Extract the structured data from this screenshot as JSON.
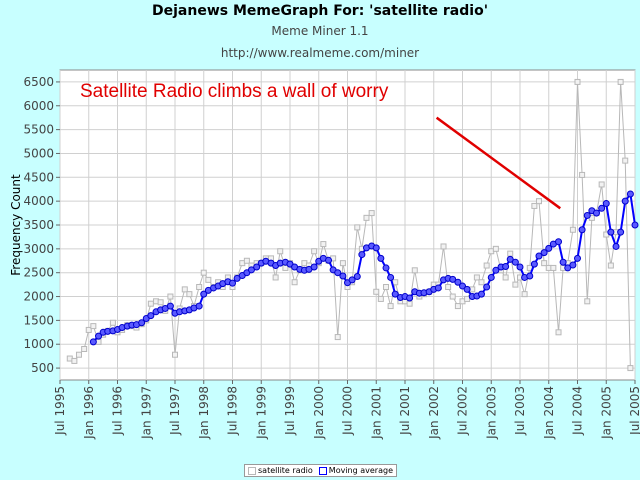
{
  "header": {
    "title": "Dejanews MemeGraph For: 'satellite radio'",
    "subtitle": "Meme Miner 1.1",
    "url": "http://www.realmeme.com/miner"
  },
  "colors": {
    "background": "#c8ffff",
    "raw_series": "#b8b8b8",
    "moving_average": "#0000ff",
    "annotation": "#e00000"
  },
  "chart_data": {
    "type": "line",
    "title": "Dejanews MemeGraph For: 'satellite radio'",
    "xlabel": "",
    "ylabel": "Frequency Count",
    "ylim": [
      250,
      6750
    ],
    "yticks": [
      500,
      1000,
      1500,
      2000,
      2500,
      3000,
      3500,
      4000,
      4500,
      5000,
      5500,
      6000,
      6500
    ],
    "xlim": [
      1995.5,
      2005.5
    ],
    "xticks": [
      "Jul 1995",
      "Jan 1996",
      "Jul 1996",
      "Jan 1997",
      "Jul 1997",
      "Jan 1998",
      "Jul 1998",
      "Jan 1999",
      "Jul 1999",
      "Jan 2000",
      "Jul 2000",
      "Jan 2001",
      "Jul 2001",
      "Jan 2002",
      "Jul 2002",
      "Jan 2003",
      "Jul 2003",
      "Jan 2004",
      "Jul 2004",
      "Jan 2005",
      "Jul 2005"
    ],
    "grid": true,
    "legend": "bottom-center",
    "annotation": {
      "text": "Satellite Radio climbs a wall of worry",
      "arrow_from": [
        2002.05,
        5750
      ],
      "arrow_to": [
        2004.2,
        3850
      ]
    },
    "series": [
      {
        "name": "satellite radio",
        "style": "thin gray line with square markers",
        "points": [
          [
            1995.67,
            700
          ],
          [
            1995.75,
            650
          ],
          [
            1995.83,
            780
          ],
          [
            1995.92,
            900
          ],
          [
            1996.0,
            1300
          ],
          [
            1996.08,
            1380
          ],
          [
            1996.17,
            1050
          ],
          [
            1996.25,
            1200
          ],
          [
            1996.33,
            1280
          ],
          [
            1996.42,
            1450
          ],
          [
            1996.5,
            1250
          ],
          [
            1996.58,
            1300
          ],
          [
            1996.67,
            1400
          ],
          [
            1996.75,
            1380
          ],
          [
            1996.83,
            1350
          ],
          [
            1996.92,
            1420
          ],
          [
            1997.0,
            1500
          ],
          [
            1997.08,
            1850
          ],
          [
            1997.17,
            1900
          ],
          [
            1997.25,
            1880
          ],
          [
            1997.33,
            1700
          ],
          [
            1997.42,
            2000
          ],
          [
            1997.5,
            780
          ],
          [
            1997.58,
            1750
          ],
          [
            1997.67,
            2150
          ],
          [
            1997.75,
            2050
          ],
          [
            1997.83,
            1800
          ],
          [
            1997.92,
            2200
          ],
          [
            1998.0,
            2500
          ],
          [
            1998.08,
            2350
          ],
          [
            1998.17,
            2200
          ],
          [
            1998.25,
            2300
          ],
          [
            1998.33,
            2200
          ],
          [
            1998.42,
            2400
          ],
          [
            1998.5,
            2200
          ],
          [
            1998.58,
            2400
          ],
          [
            1998.67,
            2700
          ],
          [
            1998.75,
            2750
          ],
          [
            1998.83,
            2650
          ],
          [
            1998.92,
            2700
          ],
          [
            1999.0,
            2700
          ],
          [
            1999.08,
            2800
          ],
          [
            1999.17,
            2800
          ],
          [
            1999.25,
            2400
          ],
          [
            1999.33,
            2950
          ],
          [
            1999.42,
            2600
          ],
          [
            1999.5,
            2700
          ],
          [
            1999.58,
            2300
          ],
          [
            1999.67,
            2550
          ],
          [
            1999.75,
            2700
          ],
          [
            1999.83,
            2650
          ],
          [
            1999.92,
            2950
          ],
          [
            2000.0,
            2700
          ],
          [
            2000.08,
            3100
          ],
          [
            2000.17,
            2750
          ],
          [
            2000.25,
            2800
          ],
          [
            2000.33,
            1150
          ],
          [
            2000.42,
            2700
          ],
          [
            2000.5,
            2200
          ],
          [
            2000.58,
            2300
          ],
          [
            2000.67,
            3450
          ],
          [
            2000.75,
            3000
          ],
          [
            2000.83,
            3650
          ],
          [
            2000.92,
            3750
          ],
          [
            2001.0,
            2100
          ],
          [
            2001.08,
            1950
          ],
          [
            2001.17,
            2200
          ],
          [
            2001.25,
            1800
          ],
          [
            2001.33,
            2300
          ],
          [
            2001.42,
            1900
          ],
          [
            2001.5,
            1900
          ],
          [
            2001.58,
            1850
          ],
          [
            2001.67,
            2550
          ],
          [
            2001.75,
            2000
          ],
          [
            2001.83,
            2050
          ],
          [
            2001.92,
            2100
          ],
          [
            2002.0,
            2250
          ],
          [
            2002.08,
            2250
          ],
          [
            2002.17,
            3050
          ],
          [
            2002.25,
            2200
          ],
          [
            2002.33,
            2000
          ],
          [
            2002.42,
            1800
          ],
          [
            2002.5,
            1900
          ],
          [
            2002.58,
            1950
          ],
          [
            2002.67,
            2150
          ],
          [
            2002.75,
            2400
          ],
          [
            2002.83,
            2300
          ],
          [
            2002.92,
            2650
          ],
          [
            2003.0,
            2950
          ],
          [
            2003.08,
            3000
          ],
          [
            2003.17,
            2550
          ],
          [
            2003.25,
            2400
          ],
          [
            2003.33,
            2900
          ],
          [
            2003.42,
            2250
          ],
          [
            2003.5,
            2400
          ],
          [
            2003.58,
            2050
          ],
          [
            2003.67,
            2600
          ],
          [
            2003.75,
            3900
          ],
          [
            2003.83,
            4000
          ],
          [
            2003.92,
            2700
          ],
          [
            2004.0,
            2600
          ],
          [
            2004.08,
            2600
          ],
          [
            2004.17,
            1250
          ],
          [
            2004.25,
            2600
          ],
          [
            2004.33,
            2700
          ],
          [
            2004.42,
            3400
          ],
          [
            2004.5,
            6500
          ],
          [
            2004.58,
            4550
          ],
          [
            2004.67,
            1900
          ],
          [
            2004.75,
            3650
          ],
          [
            2004.83,
            3750
          ],
          [
            2004.92,
            4350
          ],
          [
            2005.0,
            3300
          ],
          [
            2005.08,
            2650
          ],
          [
            2005.17,
            3350
          ],
          [
            2005.25,
            6500
          ],
          [
            2005.33,
            4850
          ],
          [
            2005.42,
            500
          ]
        ]
      },
      {
        "name": "Moving average",
        "style": "thick blue line with circle markers",
        "points": [
          [
            1996.08,
            1050
          ],
          [
            1996.17,
            1170
          ],
          [
            1996.25,
            1250
          ],
          [
            1996.33,
            1270
          ],
          [
            1996.42,
            1280
          ],
          [
            1996.5,
            1310
          ],
          [
            1996.58,
            1350
          ],
          [
            1996.67,
            1380
          ],
          [
            1996.75,
            1400
          ],
          [
            1996.83,
            1410
          ],
          [
            1996.92,
            1450
          ],
          [
            1997.0,
            1540
          ],
          [
            1997.08,
            1600
          ],
          [
            1997.17,
            1680
          ],
          [
            1997.25,
            1720
          ],
          [
            1997.33,
            1750
          ],
          [
            1997.42,
            1800
          ],
          [
            1997.5,
            1650
          ],
          [
            1997.58,
            1680
          ],
          [
            1997.67,
            1700
          ],
          [
            1997.75,
            1720
          ],
          [
            1997.83,
            1760
          ],
          [
            1997.92,
            1800
          ],
          [
            1998.0,
            2050
          ],
          [
            1998.08,
            2130
          ],
          [
            1998.17,
            2180
          ],
          [
            1998.25,
            2220
          ],
          [
            1998.33,
            2270
          ],
          [
            1998.42,
            2310
          ],
          [
            1998.5,
            2280
          ],
          [
            1998.58,
            2380
          ],
          [
            1998.67,
            2440
          ],
          [
            1998.75,
            2500
          ],
          [
            1998.83,
            2560
          ],
          [
            1998.92,
            2620
          ],
          [
            1999.0,
            2700
          ],
          [
            1999.08,
            2740
          ],
          [
            1999.17,
            2700
          ],
          [
            1999.25,
            2650
          ],
          [
            1999.33,
            2700
          ],
          [
            1999.42,
            2720
          ],
          [
            1999.5,
            2680
          ],
          [
            1999.58,
            2620
          ],
          [
            1999.67,
            2570
          ],
          [
            1999.75,
            2550
          ],
          [
            1999.83,
            2570
          ],
          [
            1999.92,
            2620
          ],
          [
            2000.0,
            2740
          ],
          [
            2000.08,
            2800
          ],
          [
            2000.17,
            2760
          ],
          [
            2000.25,
            2560
          ],
          [
            2000.33,
            2500
          ],
          [
            2000.42,
            2430
          ],
          [
            2000.5,
            2290
          ],
          [
            2000.58,
            2350
          ],
          [
            2000.67,
            2420
          ],
          [
            2000.75,
            2880
          ],
          [
            2000.83,
            3020
          ],
          [
            2000.92,
            3060
          ],
          [
            2001.0,
            3020
          ],
          [
            2001.08,
            2800
          ],
          [
            2001.17,
            2600
          ],
          [
            2001.25,
            2400
          ],
          [
            2001.33,
            2050
          ],
          [
            2001.42,
            1980
          ],
          [
            2001.5,
            2000
          ],
          [
            2001.58,
            1970
          ],
          [
            2001.67,
            2100
          ],
          [
            2001.75,
            2070
          ],
          [
            2001.83,
            2080
          ],
          [
            2001.92,
            2100
          ],
          [
            2002.0,
            2150
          ],
          [
            2002.08,
            2180
          ],
          [
            2002.17,
            2350
          ],
          [
            2002.25,
            2380
          ],
          [
            2002.33,
            2360
          ],
          [
            2002.42,
            2300
          ],
          [
            2002.5,
            2220
          ],
          [
            2002.58,
            2150
          ],
          [
            2002.67,
            2000
          ],
          [
            2002.75,
            2010
          ],
          [
            2002.83,
            2050
          ],
          [
            2002.92,
            2200
          ],
          [
            2003.0,
            2400
          ],
          [
            2003.08,
            2550
          ],
          [
            2003.17,
            2620
          ],
          [
            2003.25,
            2630
          ],
          [
            2003.33,
            2780
          ],
          [
            2003.42,
            2720
          ],
          [
            2003.5,
            2620
          ],
          [
            2003.58,
            2400
          ],
          [
            2003.67,
            2430
          ],
          [
            2003.75,
            2680
          ],
          [
            2003.83,
            2850
          ],
          [
            2003.92,
            2920
          ],
          [
            2004.0,
            3010
          ],
          [
            2004.08,
            3100
          ],
          [
            2004.17,
            3150
          ],
          [
            2004.25,
            2720
          ],
          [
            2004.33,
            2600
          ],
          [
            2004.42,
            2660
          ],
          [
            2004.5,
            2800
          ],
          [
            2004.58,
            3400
          ],
          [
            2004.67,
            3700
          ],
          [
            2004.75,
            3800
          ],
          [
            2004.83,
            3750
          ],
          [
            2004.92,
            3850
          ],
          [
            2005.0,
            3950
          ],
          [
            2005.08,
            3350
          ],
          [
            2005.17,
            3050
          ],
          [
            2005.25,
            3350
          ],
          [
            2005.33,
            4000
          ],
          [
            2005.42,
            4150
          ],
          [
            2005.5,
            3500
          ]
        ]
      }
    ]
  },
  "legend": {
    "items": [
      {
        "label": "satellite radio"
      },
      {
        "label": "Moving average"
      }
    ]
  }
}
